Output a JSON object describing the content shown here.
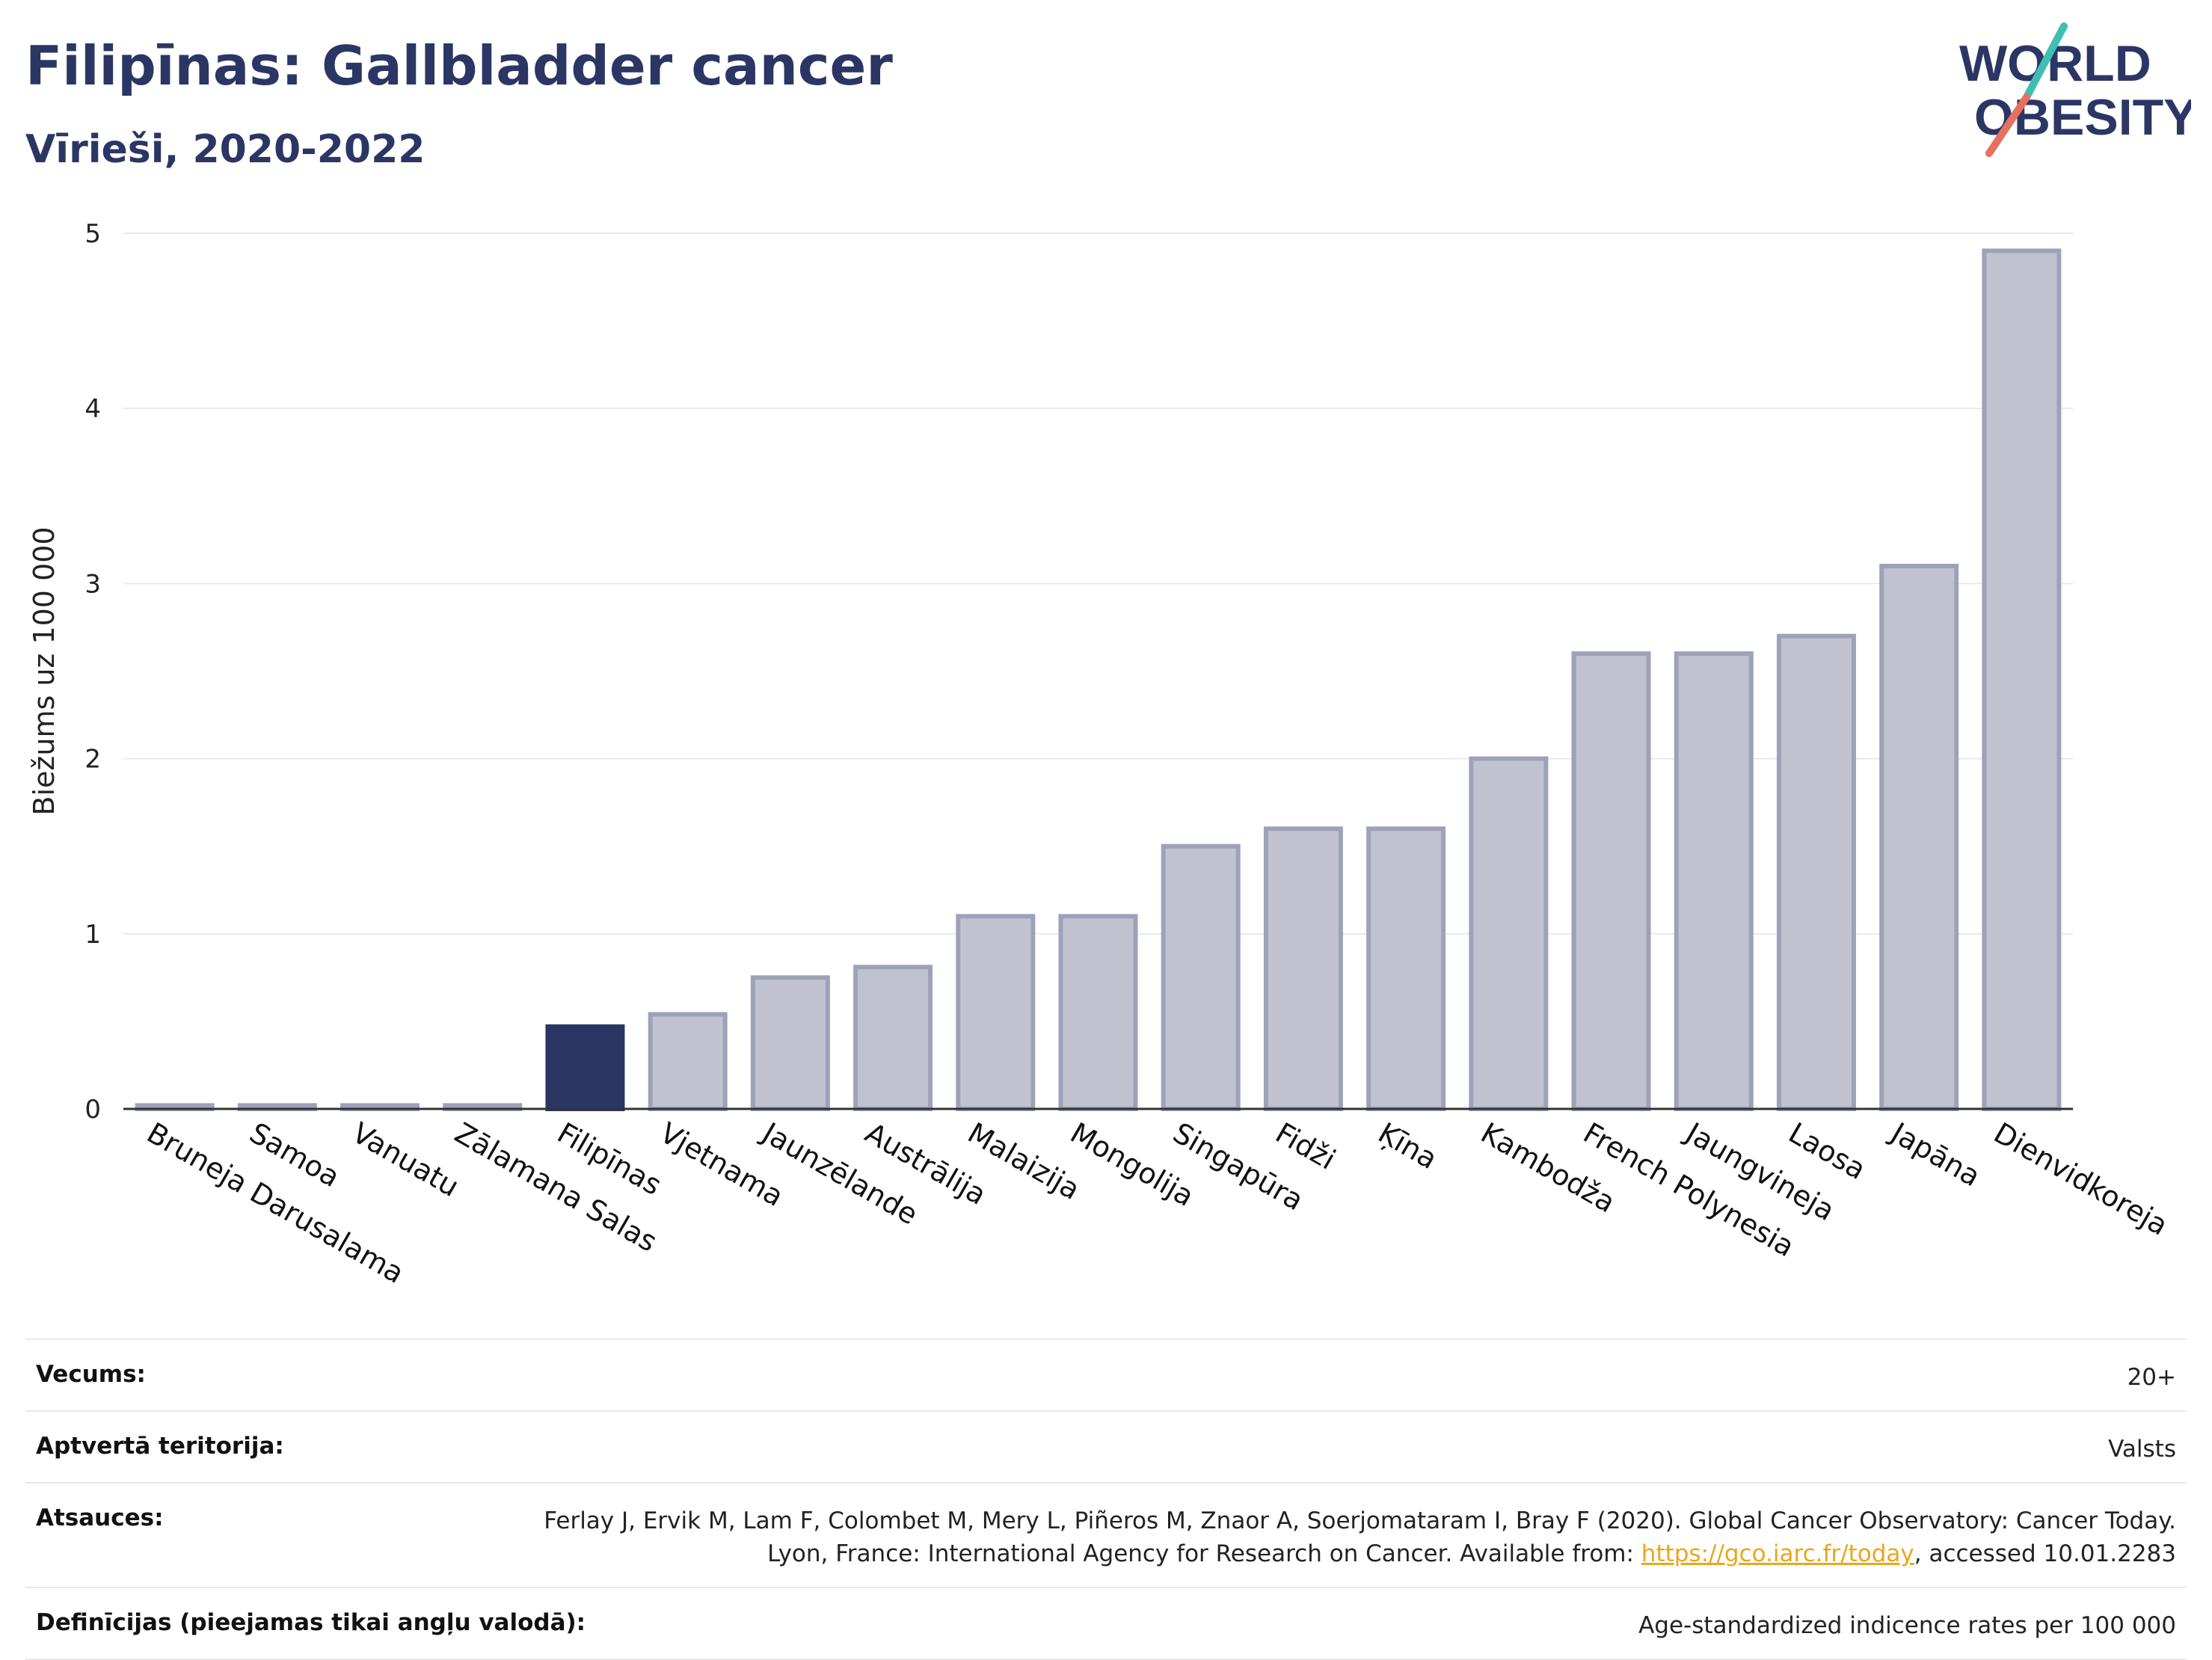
{
  "header": {
    "title": "Filipīnas: Gallbladder cancer",
    "subtitle": "Vīrieši, 2020-2022",
    "logo_line1": "WORLD",
    "logo_line2": "OBESITY"
  },
  "colors": {
    "highlight": "#2b3664",
    "bar_fill": "#c0c3cf",
    "bar_stroke": "#9ea2b8",
    "logo_teal": "#3fbfb4",
    "logo_coral": "#e8705f",
    "link": "#e8a81a"
  },
  "chart_data": {
    "type": "bar",
    "ylabel": "Biežums uz 100 000",
    "ylim": [
      0,
      5
    ],
    "yticks": [
      "0",
      "1",
      "2",
      "3",
      "4",
      "5"
    ],
    "grid": true,
    "highlight_category": "Filipīnas",
    "categories": [
      "Bruneja Darusalama",
      "Samoa",
      "Vanuatu",
      "Zālamana Salas",
      "Filipīnas",
      "Vjetnama",
      "Jaunzēlande",
      "Austrālija",
      "Malaizija",
      "Mongolija",
      "Singapūra",
      "Fidži",
      "Ķīna",
      "Kambodža",
      "French Polynesia",
      "Jaungvineja",
      "Laosa",
      "Japāna",
      "Dienvidkoreja"
    ],
    "values": [
      0.02,
      0.02,
      0.02,
      0.02,
      0.47,
      0.54,
      0.75,
      0.81,
      1.1,
      1.1,
      1.5,
      1.6,
      1.6,
      2.0,
      2.6,
      2.6,
      2.7,
      3.1,
      4.9
    ]
  },
  "meta": {
    "age_label": "Vecums:",
    "age_value": "20+",
    "territory_label": "Aptvertā teritorija:",
    "territory_value": "Valsts",
    "sources_label": "Atsauces:",
    "sources_text_1": "Ferlay J, Ervik M, Lam F, Colombet M, Mery L, Piñeros M, Znaor A, Soerjomataram I, Bray F (2020). Global Cancer Observatory: Cancer Today. Lyon, France: International Agency for Research on Cancer. Available from: ",
    "sources_link": "https://gco.iarc.fr/today",
    "sources_text_2": ", accessed 10.01.2283",
    "definitions_label": "Definīcijas (pieejamas tikai angļu valodā):",
    "definitions_value": "Age-standardized indicence rates per 100 000"
  }
}
